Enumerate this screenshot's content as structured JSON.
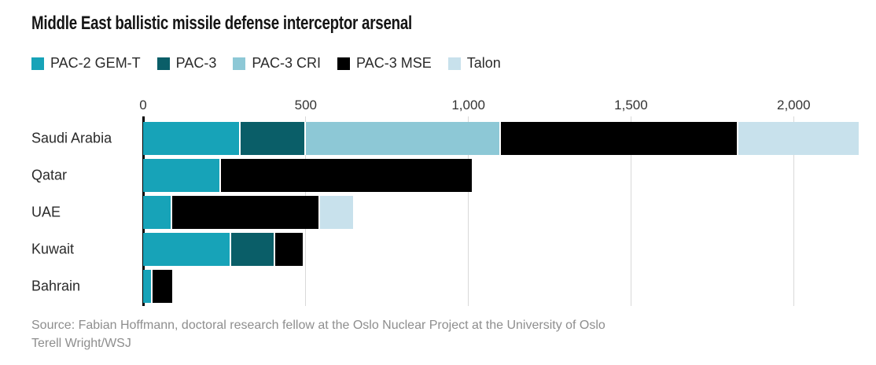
{
  "title": "Middle East ballistic missile defense interceptor arsenal",
  "source": {
    "line1": "Source: Fabian Hoffmann, doctoral research fellow at the Oslo Nuclear Project at the University of Oslo",
    "line2": "Terell Wright/WSJ"
  },
  "chart_data": {
    "type": "bar",
    "orientation": "horizontal",
    "stacked": true,
    "title": "Middle East ballistic missile defense interceptor arsenal",
    "categories": [
      "Saudi Arabia",
      "Qatar",
      "UAE",
      "Kuwait",
      "Bahrain"
    ],
    "series": [
      {
        "name": "PAC-2 GEM-T",
        "color": "#17a3b8",
        "values": [
          300,
          240,
          90,
          270,
          30
        ]
      },
      {
        "name": "PAC-3",
        "color": "#0a5e68",
        "values": [
          200,
          0,
          0,
          135,
          0
        ]
      },
      {
        "name": "PAC-3 CRI",
        "color": "#8dc8d6",
        "values": [
          600,
          0,
          0,
          0,
          0
        ]
      },
      {
        "name": "PAC-3 MSE",
        "color": "#000000",
        "values": [
          730,
          770,
          455,
          85,
          60
        ]
      },
      {
        "name": "Talon",
        "color": "#c8e1ec",
        "values": [
          370,
          0,
          100,
          0,
          0
        ]
      }
    ],
    "xlim": [
      0,
      2200
    ],
    "ticks": [
      {
        "value": 0,
        "label": "0"
      },
      {
        "value": 500,
        "label": "500"
      },
      {
        "value": 1000,
        "label": "1,000"
      },
      {
        "value": 1500,
        "label": "1,500"
      },
      {
        "value": 2000,
        "label": "2,000"
      }
    ],
    "grid": "vertical",
    "gridline_color": "#d9d9d9",
    "axis_color": "#000000",
    "legend_position": "top"
  }
}
